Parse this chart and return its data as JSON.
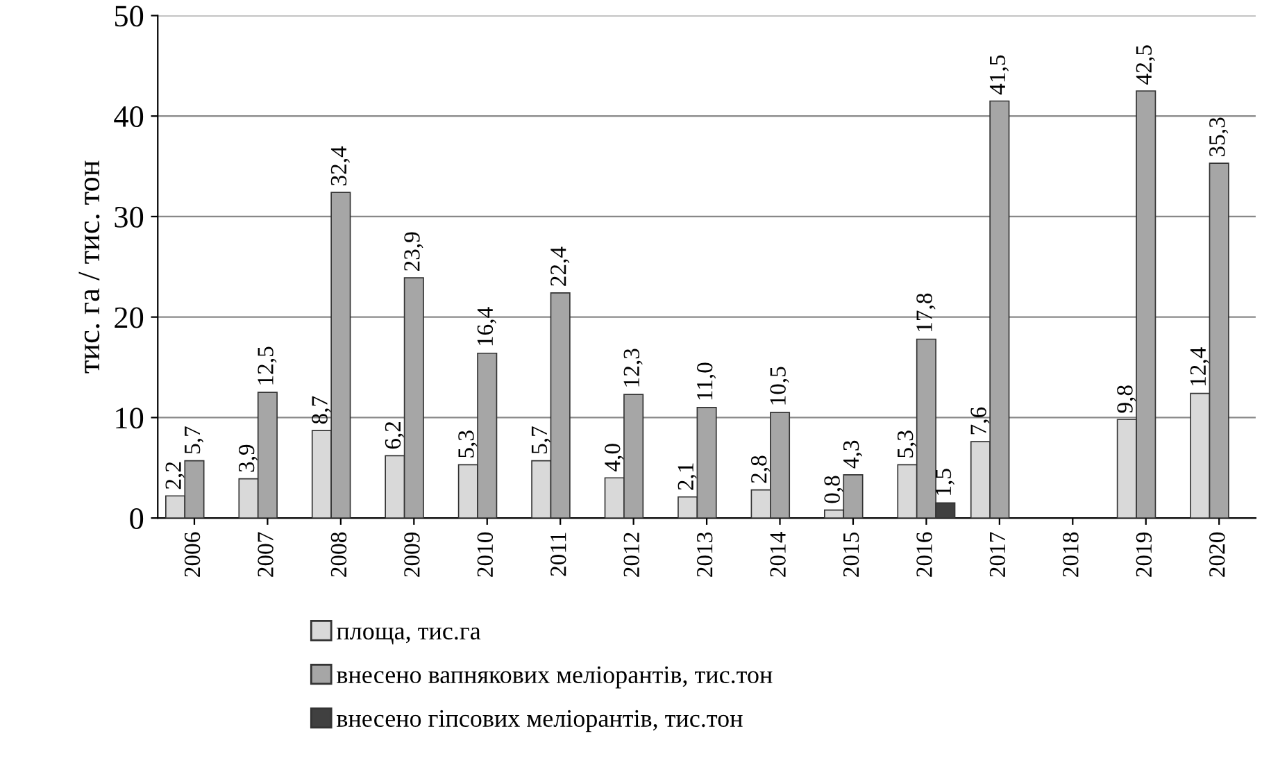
{
  "chart_data": {
    "type": "bar",
    "ylabel": "тис. га / тис. тон",
    "categories": [
      "2006",
      "2007",
      "2008",
      "2009",
      "2010",
      "2011",
      "2012",
      "2013",
      "2014",
      "2015",
      "2016",
      "2017",
      "2018",
      "2019",
      "2020"
    ],
    "series": [
      {
        "name": "площа, тис.га",
        "color": "#d9d9d9",
        "values": [
          2.2,
          3.9,
          8.7,
          6.2,
          5.3,
          5.7,
          4.0,
          2.1,
          2.8,
          0.8,
          5.3,
          7.6,
          null,
          9.8,
          12.4
        ],
        "value_labels": [
          "2,2",
          "3,9",
          "8,7",
          "6,2",
          "5,3",
          "5,7",
          "4,0",
          "2,1",
          "2,8",
          "0,8",
          "5,3",
          "7,6",
          null,
          "9,8",
          "12,4"
        ]
      },
      {
        "name": "внесено вапнякових меліорантів, тис.тон",
        "color": "#a6a6a6",
        "values": [
          5.7,
          12.5,
          32.4,
          23.9,
          16.4,
          22.4,
          12.3,
          11.0,
          10.5,
          4.3,
          17.8,
          41.5,
          null,
          42.5,
          35.3
        ],
        "value_labels": [
          "5,7",
          "12,5",
          "32,4",
          "23,9",
          "16,4",
          "22,4",
          "12,3",
          "11,0",
          "10,5",
          "4,3",
          "17,8",
          "41,5",
          null,
          "42,5",
          "35,3"
        ]
      },
      {
        "name": "внесено гіпсових меліорантів, тис.тон",
        "color": "#404040",
        "values": [
          null,
          null,
          null,
          null,
          null,
          null,
          null,
          null,
          null,
          null,
          1.5,
          null,
          null,
          null,
          null
        ],
        "value_labels": [
          null,
          null,
          null,
          null,
          null,
          null,
          null,
          null,
          null,
          null,
          "1,5",
          null,
          null,
          null,
          null
        ]
      }
    ],
    "ylim": [
      0,
      50
    ],
    "yticks": [
      0,
      10,
      20,
      30,
      40,
      50
    ],
    "grid": "y",
    "legend": "bottom"
  }
}
